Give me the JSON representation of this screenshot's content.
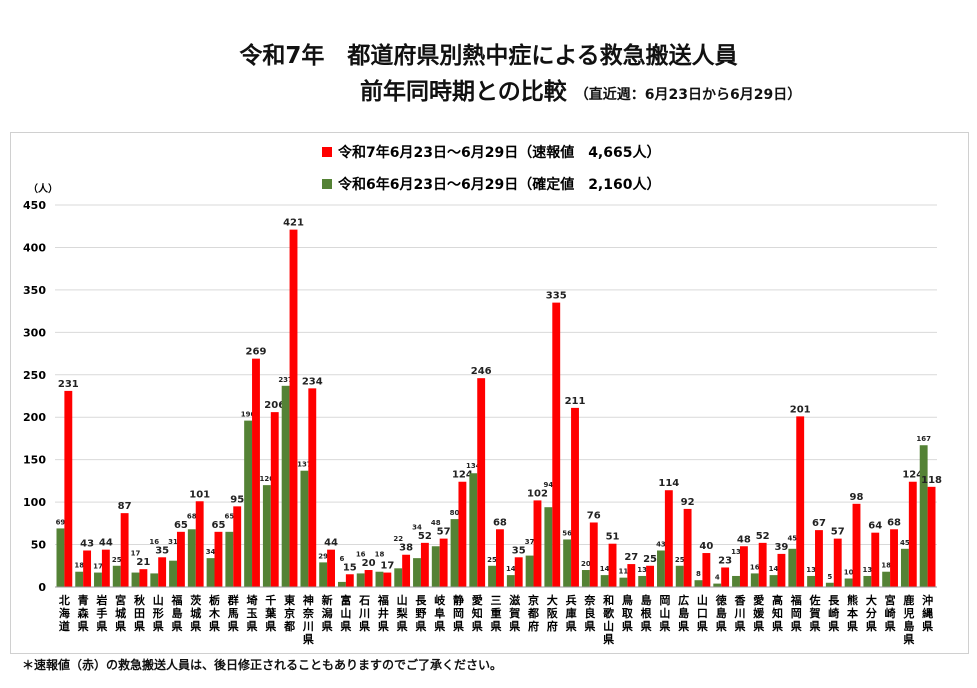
{
  "title": {
    "line1": "令和7年　都道府県別熱中症による救急搬送人員",
    "line2": "前年同時期との比較",
    "period": "（直近週：6月23日から6月29日）"
  },
  "footnote": "＊速報値（赤）の救急搬送人員は、後日修正されることもありますのでご了承ください。",
  "chart_data": {
    "type": "bar",
    "ylabel": "（人）",
    "ylim": [
      0,
      450
    ],
    "yticks": [
      0,
      50,
      100,
      150,
      200,
      250,
      300,
      350,
      400,
      450
    ],
    "grid": true,
    "legend_position": "top-center",
    "categories": [
      "北海道",
      "青森県",
      "岩手県",
      "宮城県",
      "秋田県",
      "山形県",
      "福島県",
      "茨城県",
      "栃木県",
      "群馬県",
      "埼玉県",
      "千葉県",
      "東京都",
      "神奈川県",
      "新潟県",
      "富山県",
      "石川県",
      "福井県",
      "山梨県",
      "長野県",
      "岐阜県",
      "静岡県",
      "愛知県",
      "三重県",
      "滋賀県",
      "京都府",
      "大阪府",
      "兵庫県",
      "奈良県",
      "和歌山県",
      "鳥取県",
      "島根県",
      "岡山県",
      "広島県",
      "山口県",
      "徳島県",
      "香川県",
      "愛媛県",
      "高知県",
      "福岡県",
      "佐賀県",
      "長崎県",
      "熊本県",
      "大分県",
      "宮崎県",
      "鹿児島県",
      "沖縄県"
    ],
    "series": [
      {
        "name": "令和6年6月23日～6月29日（確定値　2,160人）",
        "color": "#548235",
        "values": [
          69,
          18,
          17,
          25,
          17,
          16,
          31,
          68,
          34,
          65,
          196,
          120,
          237,
          137,
          29,
          6,
          16,
          18,
          22,
          34,
          48,
          80,
          134,
          25,
          14,
          37,
          94,
          56,
          20,
          14,
          11,
          13,
          43,
          25,
          8,
          4,
          13,
          16,
          14,
          45,
          13,
          5,
          10,
          13,
          18,
          45,
          167
        ]
      },
      {
        "name": "令和7年6月23日～6月29日（速報値　4,665人）",
        "color": "#ff0000",
        "values": [
          231,
          43,
          44,
          87,
          21,
          35,
          65,
          101,
          65,
          95,
          269,
          206,
          421,
          234,
          44,
          15,
          20,
          17,
          38,
          52,
          57,
          124,
          246,
          68,
          35,
          102,
          335,
          211,
          76,
          51,
          27,
          25,
          114,
          92,
          40,
          23,
          48,
          52,
          39,
          201,
          67,
          57,
          98,
          64,
          68,
          124,
          118
        ]
      }
    ]
  }
}
